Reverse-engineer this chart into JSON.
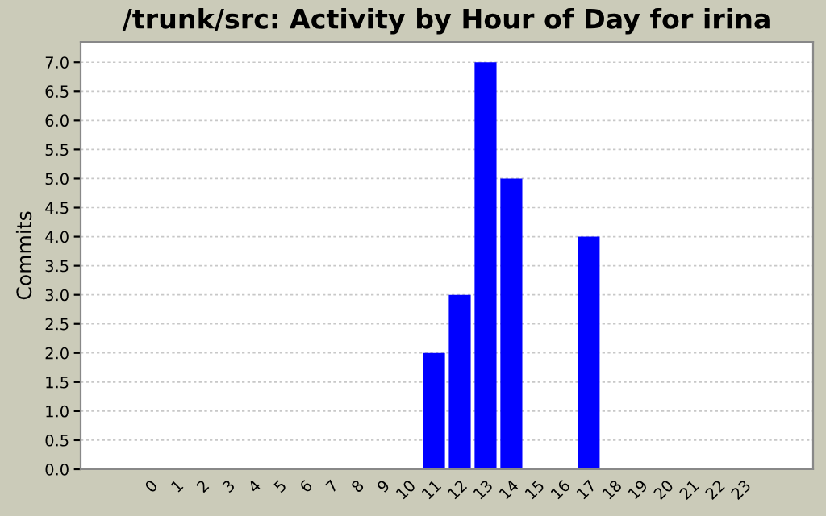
{
  "chart_data": {
    "type": "bar",
    "title": "/trunk/src: Activity by Hour of Day for irina",
    "ylabel": "Commits",
    "categories": [
      "0",
      "1",
      "2",
      "3",
      "4",
      "5",
      "6",
      "7",
      "8",
      "9",
      "10",
      "11",
      "12",
      "13",
      "14",
      "15",
      "16",
      "17",
      "18",
      "19",
      "20",
      "21",
      "22",
      "23"
    ],
    "values": [
      0,
      0,
      0,
      0,
      0,
      0,
      0,
      0,
      0,
      0,
      0,
      2,
      3,
      7,
      5,
      0,
      0,
      4,
      0,
      0,
      0,
      0,
      0,
      0
    ],
    "color": "#0000ff",
    "ylim": [
      0,
      7.35
    ],
    "yticks": [
      {
        "value": 0,
        "label": "0.0"
      },
      {
        "value": 0.5,
        "label": "0.5"
      },
      {
        "value": 1,
        "label": "1.0"
      },
      {
        "value": 1.5,
        "label": "1.5"
      },
      {
        "value": 2,
        "label": "2.0"
      },
      {
        "value": 2.5,
        "label": "2.5"
      },
      {
        "value": 3,
        "label": "3.0"
      },
      {
        "value": 3.5,
        "label": "3.5"
      },
      {
        "value": 4,
        "label": "4.0"
      },
      {
        "value": 4.5,
        "label": "4.5"
      },
      {
        "value": 5,
        "label": "5.0"
      },
      {
        "value": 5.5,
        "label": "5.5"
      },
      {
        "value": 6,
        "label": "6.0"
      },
      {
        "value": 6.5,
        "label": "6.5"
      },
      {
        "value": 7,
        "label": "7.0"
      }
    ],
    "grid": "y",
    "legend": false
  }
}
